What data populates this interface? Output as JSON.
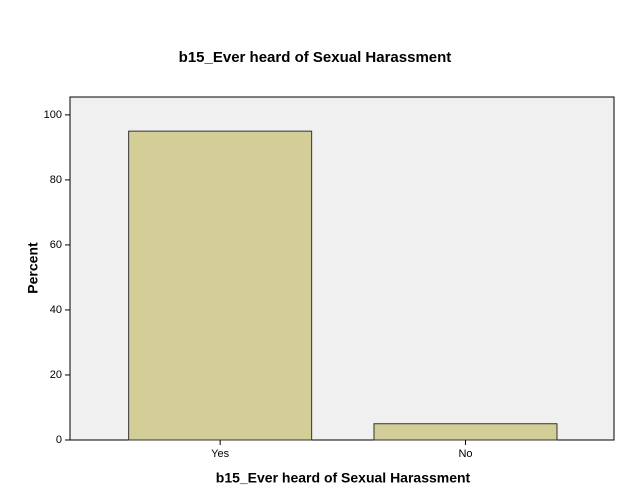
{
  "chart_data": {
    "type": "bar",
    "title": "b15_Ever heard of Sexual Harassment",
    "x_label": "b15_Ever heard of Sexual Harassment",
    "y_label": "Percent",
    "categories": [
      "Yes",
      "No"
    ],
    "values": [
      95,
      5
    ],
    "color": "#d3ce97",
    "ylim": [
      0,
      105.5
    ],
    "yticks": [
      0,
      20,
      40,
      60,
      80,
      100
    ]
  }
}
